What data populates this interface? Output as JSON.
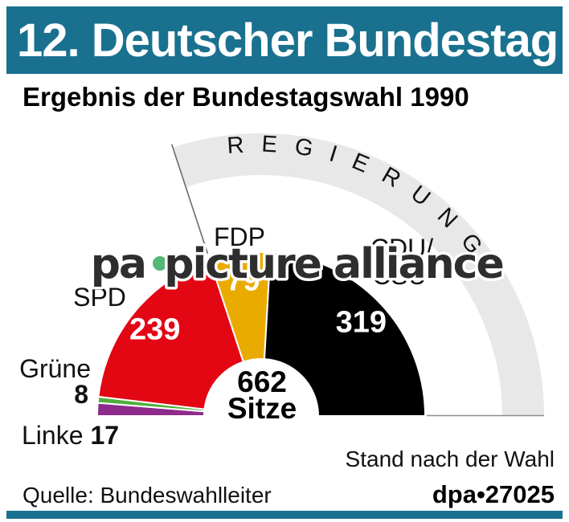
{
  "header": {
    "title": "12. Deutscher Bundestag"
  },
  "subtitle": "Ergebnis der Bundestagswahl 1990",
  "chart_data": {
    "type": "half-donut-parliament",
    "title": "Ergebnis der Bundestagswahl 1990",
    "total_seats": 662,
    "center_label": {
      "value": "662",
      "unit": "Sitze"
    },
    "order": "left-to-right",
    "series": [
      {
        "name": "Linke",
        "seats": 17,
        "color": "#8f2b8b"
      },
      {
        "name": "Grüne",
        "seats": 8,
        "color": "#50ae3c"
      },
      {
        "name": "SPD",
        "seats": 239,
        "color": "#e30613"
      },
      {
        "name": "FDP",
        "seats": 79,
        "color": "#eaab00"
      },
      {
        "name": "CDU/CSU",
        "seats": 319,
        "color": "#000000"
      }
    ],
    "government": {
      "label": "REGIERUNG",
      "parties": [
        "FDP",
        "CDU/CSU"
      ],
      "arc_color": "#e8e8e8"
    },
    "annotation": "Stand nach der Wahl"
  },
  "footer": {
    "source": "Quelle: Bundeswahlleiter",
    "credit": "dpa•27025"
  },
  "watermark": {
    "prefix": "pa",
    "text": "picture alliance",
    "dot_color": "#55b878",
    "text_color": "#2e2e2e"
  },
  "colors": {
    "accent_teal": "#19718f",
    "value_text": "#ffffff",
    "label_text": "#111111"
  }
}
